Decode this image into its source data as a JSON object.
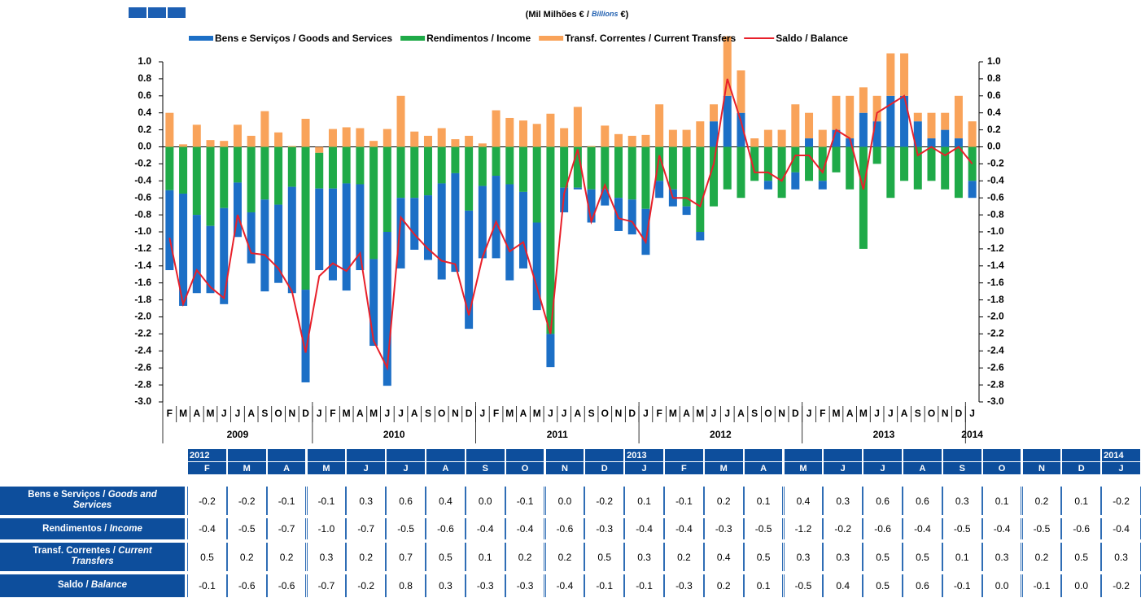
{
  "chart_data": {
    "type": "bar",
    "subtitle_parts": [
      "(Mil Milhões € / ",
      "Billions",
      " €)"
    ],
    "categories": [
      "F",
      "M",
      "A",
      "M",
      "J",
      "J",
      "A",
      "S",
      "O",
      "N",
      "D",
      "J",
      "F",
      "M",
      "A",
      "M",
      "J",
      "J",
      "A",
      "S",
      "O",
      "N",
      "D",
      "J",
      "F",
      "M",
      "A",
      "M",
      "J",
      "J",
      "A",
      "S",
      "O",
      "N",
      "D",
      "J",
      "F",
      "M",
      "A",
      "M",
      "J",
      "J",
      "A",
      "S",
      "O",
      "N",
      "D",
      "J",
      "F",
      "M",
      "A",
      "M",
      "J",
      "J",
      "A",
      "S",
      "O",
      "N",
      "D",
      "J"
    ],
    "years": [
      "2009",
      "2010",
      "2011",
      "2012",
      "2013",
      "2014"
    ],
    "series": [
      {
        "name": "Bens e Serviços / Goods and Services",
        "color": "#1c6fc6",
        "values": [
          -0.94,
          -1.32,
          -0.92,
          -0.79,
          -1.13,
          -0.64,
          -0.6,
          -1.08,
          -0.92,
          -1.25,
          -1.09,
          -0.96,
          -1.08,
          -1.26,
          -1.01,
          -1.02,
          -1.81,
          -0.83,
          -0.61,
          -0.76,
          -1.13,
          -1.16,
          -1.39,
          -0.85,
          -0.97,
          -1.13,
          -0.9,
          -1.03,
          -0.39,
          -0.29,
          -0.02,
          -0.39,
          -0.19,
          -0.39,
          -0.41,
          -0.54,
          -0.2,
          -0.2,
          -0.1,
          -0.1,
          0.3,
          0.6,
          0.4,
          0.0,
          -0.1,
          0.0,
          -0.2,
          0.1,
          -0.1,
          0.2,
          0.1,
          0.4,
          0.3,
          0.6,
          0.6,
          0.3,
          0.1,
          0.2,
          0.1,
          -0.2
        ]
      },
      {
        "name": "Rendimentos / Income",
        "color": "#1faa48",
        "values": [
          -0.51,
          -0.55,
          -0.8,
          -0.93,
          -0.72,
          -0.42,
          -0.77,
          -0.62,
          -0.68,
          -0.47,
          -1.68,
          -0.42,
          -0.49,
          -0.43,
          -0.44,
          -1.32,
          -1.0,
          -0.6,
          -0.6,
          -0.57,
          -0.43,
          -0.31,
          -0.75,
          -0.46,
          -0.34,
          -0.44,
          -0.53,
          -0.89,
          -2.2,
          -0.48,
          -0.48,
          -0.5,
          -0.5,
          -0.6,
          -0.62,
          -0.73,
          -0.4,
          -0.5,
          -0.7,
          -1.0,
          -0.7,
          -0.5,
          -0.6,
          -0.4,
          -0.4,
          -0.6,
          -0.3,
          -0.4,
          -0.4,
          -0.3,
          -0.5,
          -1.2,
          -0.2,
          -0.6,
          -0.4,
          -0.5,
          -0.4,
          -0.5,
          -0.6,
          -0.4
        ]
      },
      {
        "name": "Transf. Correntes / Current Transfers",
        "color": "#f9a35a",
        "values": [
          0.4,
          0.03,
          0.26,
          0.08,
          0.07,
          0.26,
          0.13,
          0.42,
          0.17,
          0.01,
          0.33,
          -0.07,
          0.21,
          0.23,
          0.22,
          0.07,
          0.21,
          0.6,
          0.18,
          0.13,
          0.22,
          0.09,
          0.13,
          0.04,
          0.43,
          0.34,
          0.31,
          0.27,
          0.39,
          0.22,
          0.47,
          0.01,
          0.25,
          0.15,
          0.13,
          0.14,
          0.5,
          0.2,
          0.2,
          0.3,
          0.2,
          0.7,
          0.5,
          0.1,
          0.2,
          0.2,
          0.5,
          0.3,
          0.2,
          0.4,
          0.5,
          0.3,
          0.3,
          0.5,
          0.5,
          0.1,
          0.3,
          0.2,
          0.5,
          0.3
        ]
      },
      {
        "name": "Saldo / Balance",
        "type": "line",
        "color": "#e8202a",
        "values": [
          -1.07,
          -1.85,
          -1.45,
          -1.65,
          -1.78,
          -0.8,
          -1.25,
          -1.27,
          -1.43,
          -1.7,
          -2.42,
          -1.52,
          -1.37,
          -1.46,
          -1.25,
          -2.28,
          -2.6,
          -0.83,
          -1.03,
          -1.2,
          -1.34,
          -1.38,
          -1.98,
          -1.3,
          -0.88,
          -1.23,
          -1.12,
          -1.65,
          -2.2,
          -0.55,
          -0.03,
          -0.88,
          -0.45,
          -0.84,
          -0.88,
          -1.12,
          -0.1,
          -0.6,
          -0.6,
          -0.7,
          -0.2,
          0.8,
          0.3,
          -0.3,
          -0.3,
          -0.4,
          -0.1,
          -0.1,
          -0.3,
          0.2,
          0.1,
          -0.5,
          0.4,
          0.5,
          0.6,
          -0.1,
          0.0,
          -0.1,
          0.0,
          -0.2
        ]
      }
    ],
    "ylim": [
      -3.0,
      1.0
    ],
    "yticks": [
      {
        "value": 1.0,
        "label": "1.0"
      },
      {
        "value": 0.8,
        "label": "0.8"
      },
      {
        "value": 0.6,
        "label": "0.6"
      },
      {
        "value": 0.4,
        "label": "0.4"
      },
      {
        "value": 0.2,
        "label": "0.2"
      },
      {
        "value": 0.0,
        "label": "0.0"
      },
      {
        "value": -0.2,
        "label": "-0.2"
      },
      {
        "value": -0.4,
        "label": "-0.4"
      },
      {
        "value": -0.6,
        "label": "-0.6"
      },
      {
        "value": -0.8,
        "label": "-0.8"
      },
      {
        "value": -1.0,
        "label": "-1.0"
      },
      {
        "value": -1.2,
        "label": "-1.2"
      },
      {
        "value": -1.4,
        "label": "-1.4"
      },
      {
        "value": -1.6,
        "label": "-1.6"
      },
      {
        "value": -1.8,
        "label": "-1.8"
      },
      {
        "value": -2.0,
        "label": "-2.0"
      },
      {
        "value": -2.2,
        "label": "-2.2"
      },
      {
        "value": -2.4,
        "label": "-2.4"
      },
      {
        "value": -2.6,
        "label": "-2.6"
      },
      {
        "value": -2.8,
        "label": "-2.8"
      },
      {
        "value": -3.0,
        "label": "-3.0"
      }
    ],
    "grid": false,
    "legend": "top"
  },
  "table": {
    "years": [
      "2012",
      "2013",
      "2014"
    ],
    "months": [
      "F",
      "M",
      "A",
      "M",
      "J",
      "J",
      "A",
      "S",
      "O",
      "N",
      "D",
      "J",
      "F",
      "M",
      "A",
      "M",
      "J",
      "J",
      "A",
      "S",
      "O",
      "N",
      "D",
      "J"
    ],
    "rows": [
      {
        "label": "Bens e Serviços / ",
        "label_en": "Goods and Services",
        "cells": [
          "-0.2",
          "-0.2",
          "-0.1",
          "-0.1",
          "0.3",
          "0.6",
          "0.4",
          "0.0",
          "-0.1",
          "0.0",
          "-0.2",
          "0.1",
          "-0.1",
          "0.2",
          "0.1",
          "0.4",
          "0.3",
          "0.6",
          "0.6",
          "0.3",
          "0.1",
          "0.2",
          "0.1",
          "-0.2"
        ]
      },
      {
        "label": "Rendimentos / ",
        "label_en": "Income",
        "cells": [
          "-0.4",
          "-0.5",
          "-0.7",
          "-1.0",
          "-0.7",
          "-0.5",
          "-0.6",
          "-0.4",
          "-0.4",
          "-0.6",
          "-0.3",
          "-0.4",
          "-0.4",
          "-0.3",
          "-0.5",
          "-1.2",
          "-0.2",
          "-0.6",
          "-0.4",
          "-0.5",
          "-0.4",
          "-0.5",
          "-0.6",
          "-0.4"
        ]
      },
      {
        "label": "Transf. Correntes / ",
        "label_en": "Current Transfers",
        "cells": [
          "0.5",
          "0.2",
          "0.2",
          "0.3",
          "0.2",
          "0.7",
          "0.5",
          "0.1",
          "0.2",
          "0.2",
          "0.5",
          "0.3",
          "0.2",
          "0.4",
          "0.5",
          "0.3",
          "0.3",
          "0.5",
          "0.5",
          "0.1",
          "0.3",
          "0.2",
          "0.5",
          "0.3"
        ]
      },
      {
        "label": "Saldo / ",
        "label_en": "Balance",
        "cells": [
          "-0.1",
          "-0.6",
          "-0.6",
          "-0.7",
          "-0.2",
          "0.8",
          "0.3",
          "-0.3",
          "-0.3",
          "-0.4",
          "-0.1",
          "-0.1",
          "-0.3",
          "0.2",
          "0.1",
          "-0.5",
          "0.4",
          "0.5",
          "0.6",
          "-0.1",
          "0.0",
          "-0.1",
          "0.0",
          "-0.2"
        ]
      }
    ]
  }
}
